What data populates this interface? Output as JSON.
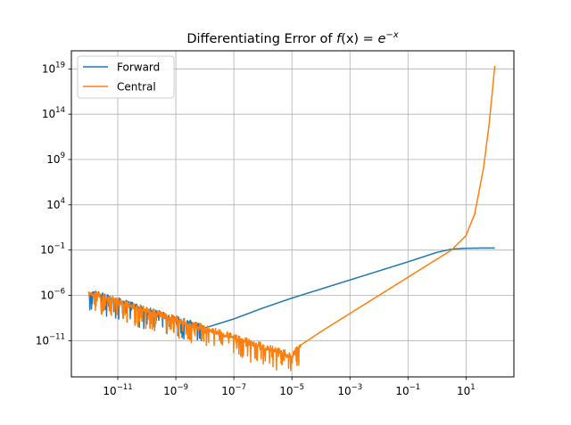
{
  "chart_data": {
    "type": "line",
    "title": "Differentiating Error of f(x) = e^{-x}",
    "title_parts": {
      "prefix": "Differentiating Error of ",
      "func": "f",
      "arg": "(x)",
      "eq": " = ",
      "base": "e",
      "exponent": "−x"
    },
    "xscale": "log",
    "yscale": "log",
    "xlim_log10": [
      -12.6,
      2.65
    ],
    "ylim_log10": [
      -15.0,
      21.0
    ],
    "grid": true,
    "legend_position": "top-left",
    "x_ticks": [
      {
        "base": "10",
        "exp": "−11",
        "log10": -11
      },
      {
        "base": "10",
        "exp": "−9",
        "log10": -9
      },
      {
        "base": "10",
        "exp": "−7",
        "log10": -7
      },
      {
        "base": "10",
        "exp": "−5",
        "log10": -5
      },
      {
        "base": "10",
        "exp": "−3",
        "log10": -3
      },
      {
        "base": "10",
        "exp": "−1",
        "log10": -1
      },
      {
        "base": "10",
        "exp": "1",
        "log10": 1
      }
    ],
    "y_ticks": [
      {
        "base": "10",
        "exp": "19",
        "log10": 19
      },
      {
        "base": "10",
        "exp": "14",
        "log10": 14
      },
      {
        "base": "10",
        "exp": "9",
        "log10": 9
      },
      {
        "base": "10",
        "exp": "4",
        "log10": 4
      },
      {
        "base": "10",
        "exp": "−1",
        "log10": -1
      },
      {
        "base": "10",
        "exp": "−6",
        "log10": -6
      },
      {
        "base": "10",
        "exp": "−11",
        "log10": -11
      }
    ],
    "series": [
      {
        "name": "Forward",
        "color": "#1f77b4",
        "x_log10": [
          -12.0,
          -11.0,
          -10.0,
          -9.0,
          -8.0,
          -7.0,
          -6.0,
          -5.0,
          -4.0,
          -3.0,
          -2.0,
          -1.0,
          0.0,
          0.5,
          1.0,
          1.5,
          2.0
        ],
        "y_log10": [
          -5.6,
          -6.6,
          -7.6,
          -8.6,
          -9.6,
          -8.6,
          -7.4,
          -6.3,
          -5.3,
          -4.3,
          -3.3,
          -2.3,
          -1.25,
          -0.9,
          -0.8,
          -0.78,
          -0.78
        ],
        "noise_until_log10": -8.0
      },
      {
        "name": "Central",
        "color": "#ff7f0e",
        "x_log10": [
          -12.0,
          -11.0,
          -10.0,
          -9.0,
          -8.0,
          -7.0,
          -6.0,
          -5.0,
          -4.7,
          -4.0,
          -3.0,
          -2.0,
          -1.0,
          0.0,
          0.5,
          1.0,
          1.3,
          1.6,
          1.8,
          2.0
        ],
        "y_log10": [
          -5.6,
          -6.6,
          -7.6,
          -8.6,
          -9.6,
          -10.6,
          -11.6,
          -12.6,
          -11.5,
          -10.0,
          -8.0,
          -6.0,
          -4.0,
          -2.0,
          -1.0,
          0.6,
          3.0,
          8.0,
          13.0,
          19.6
        ],
        "noise_until_log10": -4.7
      }
    ]
  }
}
